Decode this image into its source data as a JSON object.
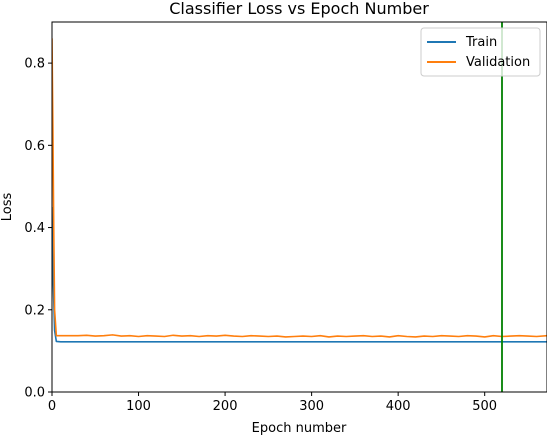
{
  "chart_data": {
    "type": "line",
    "title": "Classifier Loss vs Epoch Number",
    "xlabel": "Epoch number",
    "ylabel": "Loss",
    "xlim": [
      0,
      572
    ],
    "ylim": [
      0,
      0.9
    ],
    "x_ticks": [
      0,
      100,
      200,
      300,
      400,
      500
    ],
    "y_ticks": [
      0.0,
      0.2,
      0.4,
      0.6,
      0.8
    ],
    "x_tick_labels": [
      "0",
      "100",
      "200",
      "300",
      "400",
      "500"
    ],
    "y_tick_labels": [
      "0.0",
      "0.2",
      "0.4",
      "0.6",
      "0.8"
    ],
    "grid": false,
    "legend": {
      "position": "top-right",
      "entries": [
        "Train",
        "Validation"
      ]
    },
    "vline": {
      "x": 520,
      "color": "#008000"
    },
    "series": [
      {
        "name": "Train",
        "color": "#1f77b4",
        "x": [
          0,
          1,
          3,
          5,
          10,
          20,
          50,
          100,
          150,
          200,
          250,
          300,
          350,
          400,
          450,
          500,
          520,
          550,
          572
        ],
        "y": [
          0.45,
          0.3,
          0.15,
          0.123,
          0.122,
          0.122,
          0.122,
          0.122,
          0.122,
          0.122,
          0.122,
          0.122,
          0.122,
          0.122,
          0.122,
          0.122,
          0.122,
          0.122,
          0.122
        ]
      },
      {
        "name": "Validation",
        "color": "#ff7f0e",
        "x": [
          0,
          1,
          2,
          3,
          5,
          10,
          20,
          30,
          40,
          50,
          60,
          70,
          80,
          90,
          100,
          110,
          120,
          130,
          140,
          150,
          160,
          170,
          180,
          190,
          200,
          210,
          220,
          230,
          240,
          250,
          260,
          270,
          280,
          290,
          300,
          310,
          320,
          330,
          340,
          350,
          360,
          370,
          380,
          390,
          400,
          410,
          420,
          430,
          440,
          450,
          460,
          470,
          480,
          490,
          500,
          510,
          520,
          530,
          540,
          550,
          560,
          572
        ],
        "y": [
          0.86,
          0.65,
          0.4,
          0.2,
          0.137,
          0.137,
          0.137,
          0.137,
          0.138,
          0.136,
          0.137,
          0.139,
          0.136,
          0.137,
          0.135,
          0.137,
          0.136,
          0.135,
          0.138,
          0.136,
          0.137,
          0.135,
          0.137,
          0.136,
          0.138,
          0.136,
          0.135,
          0.137,
          0.136,
          0.135,
          0.136,
          0.134,
          0.135,
          0.136,
          0.135,
          0.137,
          0.134,
          0.136,
          0.135,
          0.136,
          0.137,
          0.135,
          0.136,
          0.134,
          0.137,
          0.135,
          0.134,
          0.136,
          0.135,
          0.137,
          0.136,
          0.135,
          0.137,
          0.136,
          0.134,
          0.137,
          0.135,
          0.136,
          0.137,
          0.136,
          0.135,
          0.137
        ]
      }
    ]
  }
}
